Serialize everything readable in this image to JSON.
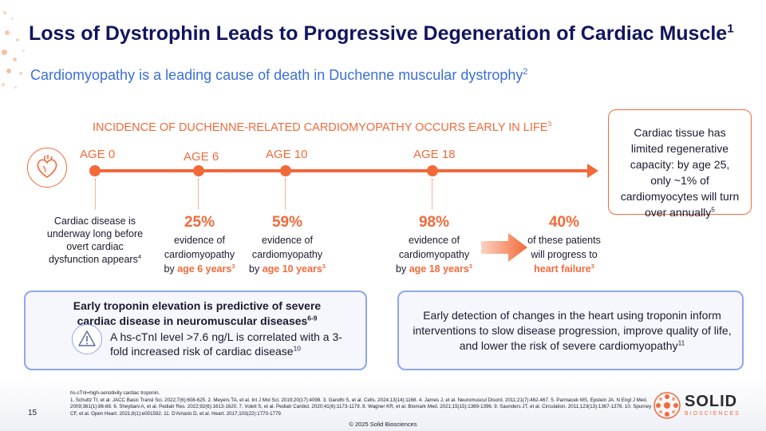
{
  "header": {
    "title": "Loss of Dystrophin Leads to Progressive Degeneration of Cardiac Muscle",
    "title_ref": "1",
    "subtitle": "Cardiomyopathy is a leading cause of death in Duchenne muscular dystrophy",
    "subtitle_ref": "2"
  },
  "timeline": {
    "heading": "INCIDENCE OF DUCHENNE-RELATED CARDIOMYOPATHY OCCURS EARLY IN LIFE",
    "heading_ref": "3",
    "ages": [
      "AGE 0",
      "AGE 6",
      "AGE 10",
      "AGE 18"
    ],
    "intro": {
      "text": "Cardiac disease is underway long before overt cardiac dysfunction appears",
      "ref": "4"
    },
    "stats": [
      {
        "pct": "25%",
        "line1": "evidence of",
        "line2": "cardiomyopathy",
        "by": "by ",
        "emph": "age 6 years",
        "ref": "3"
      },
      {
        "pct": "59%",
        "line1": "evidence of",
        "line2": "cardiomyopathy",
        "by": "by ",
        "emph": "age 10 years",
        "ref": "3"
      },
      {
        "pct": "98%",
        "line1": "evidence of",
        "line2": "cardiomyopathy",
        "by": "by ",
        "emph": "age 18 years",
        "ref": "3"
      },
      {
        "pct": "40%",
        "line1": "of these patients",
        "line2": "will progress to",
        "by": "",
        "emph": "heart failure",
        "ref": "3"
      }
    ]
  },
  "callout": {
    "text": "Cardiac tissue has limited regenerative capacity: by age 25, only ~1% of cardiomyocytes will turn over annually",
    "ref": "5"
  },
  "panel_left": {
    "heading": "Early troponin elevation is predictive of severe cardiac disease in neuromuscular diseases",
    "heading_ref": "6-9",
    "body": "A hs-cTnI level >7.6 ng/L is correlated with a 3-fold increased risk of cardiac disease",
    "body_ref": "10",
    "icon": "warning-icon"
  },
  "panel_right": {
    "body": "Early detection of changes in the heart using troponin inform interventions to slow disease progression, improve quality of life, and lower the risk of severe cardiomyopathy",
    "body_ref": "11"
  },
  "footer": {
    "abbrev": "hs-cTnI=high-sensitivity cardiac troponin.",
    "references": "1. Schultz TI, et al. JACC Basic Transl Sci. 2022;7(6):608-625. 2. Meyers TA, et al. Int J Mol Sci. 2019;20(17):4098. 3. Gandhi S, et al. Cells. 2024;13(14):1168. 4. James J, et al. Neuromuscul Disord. 2011;21(7):462-467. 5. Parmacek MS, Epstein JA. N Engl J Med. 2009;361(1):86-88. 6. Sheybani A, et al. Pediatr Res. 2022;92(6):1613-1620. 7. Voleti S, et al. Pediatr Cardiol. 2020;41(6):1173-1179. 8. Wagner KR, et al. Biomark Med. 2021;15(15):1389-1396. 9. Saunders JT, et al. Circulation. 2011;123(13):1367-1376. 10. Spurney CF, et al. Open Heart. 2021;8(1):e001592. 11. D'Amario D, et al. Heart. 2017;103(22):1770-1779.",
    "page_number": "15",
    "copyright": "© 2025 Solid Biosciences",
    "logo_word": "SOLID",
    "logo_sub": "BIOSCIENCES"
  },
  "colors": {
    "accent": "#f26a3a",
    "navy": "#12155e",
    "blue": "#3a6fd8",
    "panel_border": "#8fa6ef"
  }
}
